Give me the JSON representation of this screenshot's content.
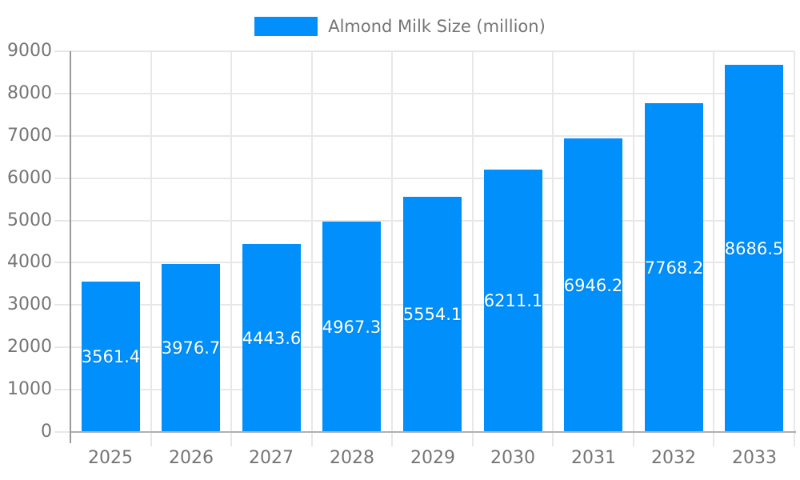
{
  "chart_data": {
    "type": "bar",
    "title": "Almond Milk Size (million)",
    "categories": [
      "2025",
      "2026",
      "2027",
      "2028",
      "2029",
      "2030",
      "2031",
      "2032",
      "2033"
    ],
    "series": [
      {
        "name": "Almond Milk Size (million)",
        "values": [
          3561.4,
          3976.7,
          4443.6,
          4967.3,
          5554.1,
          6211.1,
          6946.2,
          7768.2,
          8686.5
        ]
      }
    ],
    "xlabel": "",
    "ylabel": "",
    "ylim": [
      0,
      9000
    ],
    "yticks": [
      0,
      1000,
      2000,
      3000,
      4000,
      5000,
      6000,
      7000,
      8000,
      9000
    ],
    "grid": true,
    "legend_position": "top",
    "bar_labels_inside": true
  },
  "colors": {
    "bar": "#008FFB",
    "bar_label": "#FFFFFF",
    "axis_text": "#757575",
    "gridline": "#E8E8E8",
    "x_axis_line": "#B0B0B0",
    "y_axis_line": "#9A9A9A",
    "background": "#FFFFFF"
  }
}
